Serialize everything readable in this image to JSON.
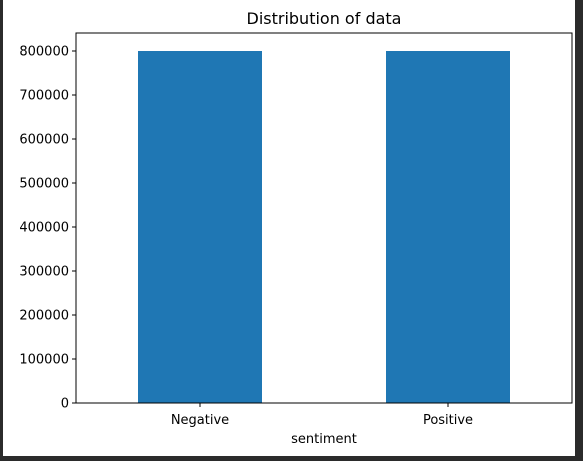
{
  "chart_data": {
    "type": "bar",
    "title": "Distribution of data",
    "xlabel": "sentiment",
    "ylabel": "",
    "categories": [
      "Negative",
      "Positive"
    ],
    "values": [
      800000,
      800000
    ],
    "ylim": [
      0,
      800000
    ],
    "yticks": [
      0,
      100000,
      200000,
      300000,
      400000,
      500000,
      600000,
      700000,
      800000
    ],
    "bar_color": "#1f77b4",
    "grid": false,
    "legend": false
  }
}
